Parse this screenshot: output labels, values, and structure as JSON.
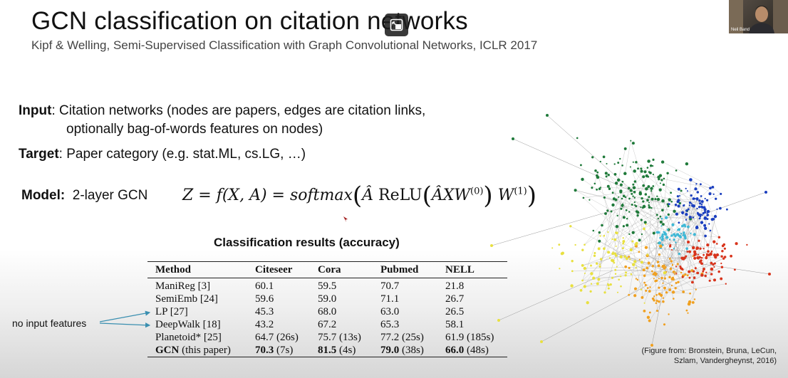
{
  "slide": {
    "title": "GCN classification on citation networks",
    "subtitle": "Kipf & Welling, Semi-Supervised Classification with Graph Convolutional Networks, ICLR 2017",
    "input_label": "Input",
    "input_text_1": ": Citation networks (nodes are papers, edges are citation links,",
    "input_text_2": "optionally bag-of-words features on nodes)",
    "target_label": "Target",
    "target_text": ": Paper category (e.g. stat.ML, cs.LG, …)",
    "model_label": "Model:",
    "model_text": "2-layer GCN"
  },
  "formula": {
    "lhs": "Z = f(X, A) = softmax",
    "a_hat": "Â",
    "relu": "ReLU",
    "inner": "ÂXW",
    "sup0": "(0)",
    "w": "W",
    "sup1": "(1)"
  },
  "table": {
    "title": "Classification results (accuracy)",
    "headers": [
      "Method",
      "Citeseer",
      "Cora",
      "Pubmed",
      "NELL"
    ],
    "rows": [
      [
        "ManiReg [3]",
        "60.1",
        "59.5",
        "70.7",
        "21.8"
      ],
      [
        "SemiEmb [24]",
        "59.6",
        "59.0",
        "71.1",
        "26.7"
      ],
      [
        "LP [27]",
        "45.3",
        "68.0",
        "63.0",
        "26.5"
      ],
      [
        "DeepWalk [18]",
        "43.2",
        "67.2",
        "65.3",
        "58.1"
      ],
      [
        "Planetoid* [25]",
        "64.7 (26s)",
        "75.7 (13s)",
        "77.2 (25s)",
        "61.9 (185s)"
      ]
    ],
    "gcn_row": {
      "method": "GCN",
      "method_suffix": " (this paper)",
      "citeseer": "70.3",
      "citeseer_time": " (7s)",
      "cora": "81.5",
      "cora_time": " (4s)",
      "pubmed": "79.0",
      "pubmed_time": " (38s)",
      "nell": "66.0",
      "nell_time": " (48s)"
    }
  },
  "annotation": "no input features",
  "caption": {
    "line1": "(Figure from: Bronstein, Bruna, LeCun,",
    "line2": "Szlam, Vandergheynst, 2016)"
  },
  "webcam": {
    "name": "Neil Band"
  },
  "colors": {
    "cluster_green": "#1f7a3a",
    "cluster_blue": "#1b3fbf",
    "cluster_cyan": "#3fb8d6",
    "cluster_orange": "#f0a020",
    "cluster_red": "#d8341c",
    "cluster_yellow": "#e8e040"
  }
}
